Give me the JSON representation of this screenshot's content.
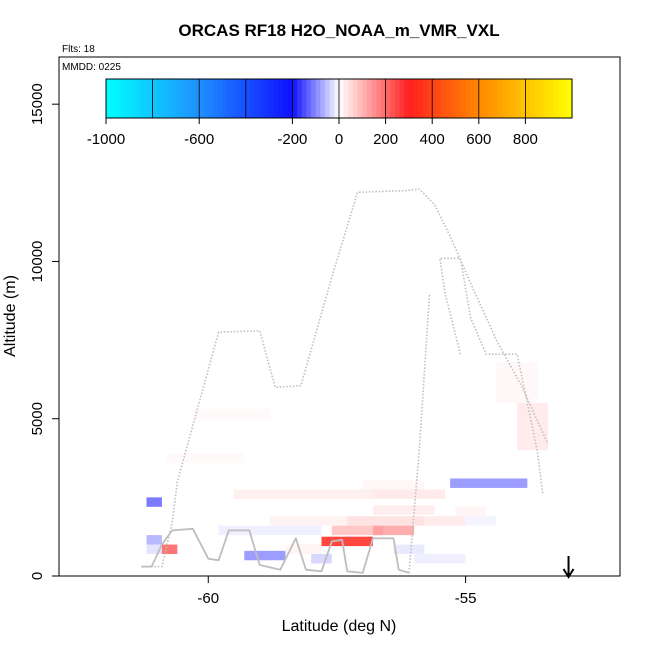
{
  "chart_data": {
    "type": "heatmap",
    "title": "ORCAS RF18 H2O_NOAA_m_VMR_VXL",
    "xlabel": "Latitude (deg N)",
    "ylabel": "Altitude (m)",
    "xlim": [
      -62.9,
      -52.0
    ],
    "ylim": [
      0,
      16500
    ],
    "x_ticks": [
      -60,
      -55
    ],
    "x_tick_labels": [
      "-60",
      "-55"
    ],
    "y_ticks": [
      0,
      5000,
      10000,
      15000
    ],
    "y_tick_labels": [
      "0",
      "5000",
      "10000",
      "15000"
    ],
    "annotations": {
      "flights": "Flts: 18",
      "mmdd": "MMDD: 0225"
    },
    "colorbar": {
      "range": [
        -1000,
        1000
      ],
      "ticks": [
        -1000,
        -600,
        -200,
        0,
        200,
        400,
        600,
        800
      ],
      "tick_labels": [
        "-1000",
        "-600",
        "-200",
        "0",
        "200",
        "400",
        "600",
        "800"
      ],
      "colors": {
        "cyan": "#00ffff",
        "sky": "#1e90ff",
        "blue": "#1010ff",
        "white": "#ffffff",
        "red": "#ff2020",
        "orange": "#ff8800",
        "yellow": "#ffff00"
      }
    },
    "track_color": "#bebebe",
    "flight_track_solid": [
      [
        -61.3,
        300
      ],
      [
        -60.9,
        300
      ],
      [
        -60.7,
        1700
      ],
      [
        -60.6,
        3000
      ],
      [
        -59.8,
        7750
      ],
      [
        -59.0,
        7800
      ],
      [
        -58.7,
        6000
      ],
      [
        -58.2,
        6050
      ],
      [
        -57.6,
        9500
      ],
      [
        -57.1,
        12200
      ],
      [
        -56.2,
        12250
      ],
      [
        -55.9,
        12300
      ],
      [
        -55.6,
        11800
      ],
      [
        -55.3,
        10800
      ],
      [
        -54.9,
        9300
      ],
      [
        -54.4,
        7500
      ],
      [
        -53.9,
        6000
      ],
      [
        -53.4,
        4200
      ]
    ],
    "flight_track_dotted": [
      [
        -55.1,
        7050
      ],
      [
        -55.4,
        9000
      ],
      [
        -55.5,
        10100
      ],
      [
        -55.1,
        10100
      ],
      [
        -54.9,
        8200
      ],
      [
        -54.6,
        7050
      ],
      [
        -54.0,
        7050
      ],
      [
        -53.8,
        5500
      ],
      [
        -53.6,
        3900
      ],
      [
        -53.5,
        2600
      ]
    ],
    "flight_track_low": [
      [
        -61.3,
        300
      ],
      [
        -61.1,
        300
      ],
      [
        -60.9,
        1000
      ],
      [
        -60.7,
        1450
      ],
      [
        -60.3,
        1500
      ],
      [
        -60.0,
        550
      ],
      [
        -59.8,
        500
      ],
      [
        -59.6,
        1450
      ],
      [
        -59.2,
        1450
      ],
      [
        -59.0,
        350
      ],
      [
        -58.6,
        200
      ],
      [
        -58.3,
        1200
      ],
      [
        -58.1,
        200
      ],
      [
        -57.8,
        150
      ],
      [
        -57.6,
        1100
      ],
      [
        -57.4,
        1150
      ],
      [
        -57.3,
        150
      ],
      [
        -57.0,
        100
      ],
      [
        -56.8,
        1200
      ],
      [
        -56.4,
        1200
      ],
      [
        -56.3,
        200
      ],
      [
        -56.1,
        100
      ]
    ],
    "descent_dotted": [
      [
        -56.1,
        100
      ],
      [
        -55.9,
        4000
      ],
      [
        -55.7,
        9000
      ]
    ],
    "cells": [
      {
        "lat0": -61.2,
        "lat1": -60.9,
        "alt0": 2200,
        "alt1": 2500,
        "value": -180
      },
      {
        "lat0": -61.2,
        "lat1": -60.9,
        "alt0": 1000,
        "alt1": 1300,
        "value": -120
      },
      {
        "lat0": -60.9,
        "lat1": -60.6,
        "alt0": 700,
        "alt1": 1000,
        "value": 250
      },
      {
        "lat0": -61.2,
        "lat1": -60.9,
        "alt0": 700,
        "alt1": 1000,
        "value": -60
      },
      {
        "lat0": -59.3,
        "lat1": -58.5,
        "alt0": 500,
        "alt1": 800,
        "value": -150
      },
      {
        "lat0": -58.0,
        "lat1": -57.6,
        "alt0": 400,
        "alt1": 700,
        "value": -80
      },
      {
        "lat0": -57.8,
        "lat1": -56.8,
        "alt0": 950,
        "alt1": 1250,
        "value": 320
      },
      {
        "lat0": -56.8,
        "lat1": -56.0,
        "alt0": 1300,
        "alt1": 1600,
        "value": 180
      },
      {
        "lat0": -57.6,
        "lat1": -56.6,
        "alt0": 1300,
        "alt1": 1600,
        "value": 140
      },
      {
        "lat0": -57.3,
        "lat1": -55.8,
        "alt0": 1600,
        "alt1": 1900,
        "value": 90
      },
      {
        "lat0": -55.8,
        "lat1": -55.0,
        "alt0": 1600,
        "alt1": 1900,
        "value": 70
      },
      {
        "lat0": -58.8,
        "lat1": -57.3,
        "alt0": 1600,
        "alt1": 1900,
        "value": 50
      },
      {
        "lat0": -56.8,
        "lat1": -55.6,
        "alt0": 1950,
        "alt1": 2250,
        "value": 60
      },
      {
        "lat0": -59.5,
        "lat1": -56.8,
        "alt0": 2450,
        "alt1": 2750,
        "value": 55
      },
      {
        "lat0": -56.8,
        "lat1": -55.4,
        "alt0": 2450,
        "alt1": 2750,
        "value": 70
      },
      {
        "lat0": -57.0,
        "lat1": -55.8,
        "alt0": 2750,
        "alt1": 3050,
        "value": 35
      },
      {
        "lat0": -55.3,
        "lat1": -53.8,
        "alt0": 2800,
        "alt1": 3100,
        "value": -150
      },
      {
        "lat0": -60.8,
        "lat1": -59.3,
        "alt0": 3600,
        "alt1": 3900,
        "value": 25
      },
      {
        "lat0": -60.3,
        "lat1": -58.8,
        "alt0": 5000,
        "alt1": 5300,
        "value": 25
      },
      {
        "lat0": -54.0,
        "lat1": -53.4,
        "alt0": 4000,
        "alt1": 5500,
        "value": 70
      },
      {
        "lat0": -54.4,
        "lat1": -53.6,
        "alt0": 5500,
        "alt1": 6800,
        "value": 30
      },
      {
        "lat0": -59.8,
        "lat1": -57.8,
        "alt0": 1300,
        "alt1": 1600,
        "value": -40
      },
      {
        "lat0": -56.0,
        "lat1": -55.0,
        "alt0": 400,
        "alt1": 700,
        "value": -40
      },
      {
        "lat0": -58.5,
        "lat1": -57.8,
        "alt0": 700,
        "alt1": 1000,
        "value": 40
      },
      {
        "lat0": -56.4,
        "lat1": -55.8,
        "alt0": 700,
        "alt1": 1000,
        "value": -50
      },
      {
        "lat0": -55.2,
        "lat1": -54.6,
        "alt0": 1900,
        "alt1": 2200,
        "value": 40
      },
      {
        "lat0": -55.0,
        "lat1": -54.4,
        "alt0": 1600,
        "alt1": 1900,
        "value": -30
      }
    ],
    "arrow_marker": {
      "lat": -53.0,
      "description": "down-arrow"
    }
  }
}
